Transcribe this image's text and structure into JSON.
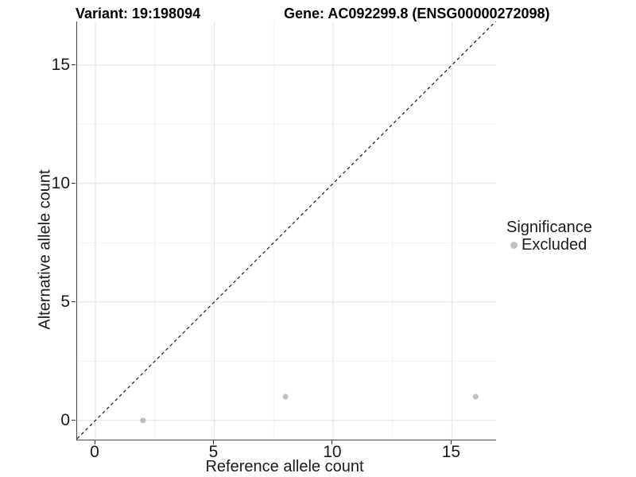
{
  "header": {
    "variant_title": "Variant: 19:198094",
    "gene_title": "Gene: AC092299.8 (ENSG00000272098)"
  },
  "chart_data": {
    "type": "scatter",
    "title": "Variant: 19:198094   Gene: AC092299.8 (ENSG00000272098)",
    "xlabel": "Reference allele count",
    "ylabel": "Alternative allele count",
    "xlim": [
      -0.77,
      16.86
    ],
    "ylim": [
      -0.81,
      16.84
    ],
    "x_ticks": [
      0,
      5,
      10,
      15
    ],
    "y_ticks": [
      0,
      5,
      10,
      15
    ],
    "x_minor_ticks": [
      2.5,
      7.5,
      12.5
    ],
    "y_minor_ticks": [
      2.5,
      7.5,
      12.5
    ],
    "grid": "major and minor gridlines on white background",
    "series": [
      {
        "name": "Excluded",
        "color": "#c0c0c0",
        "points": [
          {
            "x": 2,
            "y": 0
          },
          {
            "x": 8,
            "y": 1
          },
          {
            "x": 16,
            "y": 1
          }
        ]
      }
    ],
    "reference_line": {
      "type": "identity y=x",
      "style": "dashed",
      "color": "#1a1a1a"
    },
    "legend": {
      "title": "Significance",
      "position": "right",
      "entries": [
        {
          "label": "Excluded",
          "color": "#c0c0c0"
        }
      ]
    }
  },
  "colors": {
    "background": "#ffffff",
    "axis_line": "#474747",
    "tick_mark": "#333333",
    "grid_major": "#e4e4e4",
    "grid_minor": "#f2f2f2",
    "text": "#1a1a1a",
    "title_text": "#000000",
    "point": "#c0c0c0"
  }
}
